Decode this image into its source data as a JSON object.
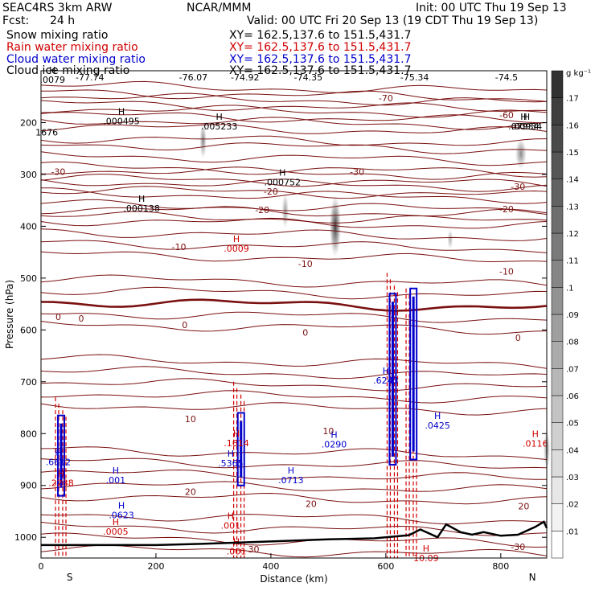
{
  "header": {
    "model": "SEAC4RS  3km ARW",
    "org": "NCAR/MMM",
    "init": "Init: 00 UTC Thu 19 Sep 13",
    "fcst_label": "Fcst:",
    "fcst_value": "24 h",
    "valid": "Valid: 00 UTC Fri 20 Sep 13 (19 CDT Thu 19 Sep 13)",
    "fields": [
      {
        "label": "Snow mixing ratio",
        "xy": "XY= 162.5,137.6 to 151.5,431.7",
        "color": "#000000"
      },
      {
        "label": "Rain water mixing ratio",
        "xy": "XY= 162.5,137.6 to 151.5,431.7",
        "color": "#d00000"
      },
      {
        "label": "Cloud water mixing ratio",
        "xy": "XY= 162.5,137.6 to 151.5,431.7",
        "color": "#0000cc"
      },
      {
        "label": "Cloud ice mixing ratio",
        "xy": "XY= 162.5,137.6 to 151.5,431.7",
        "color": "#000000"
      }
    ]
  },
  "chart_data": {
    "type": "heatmap",
    "title": "",
    "xlabel": "Distance (km)",
    "ylabel": "Pressure (hPa)",
    "xlim": [
      0,
      880
    ],
    "ylim": [
      1040,
      100
    ],
    "x_ticks": [
      0,
      200,
      400,
      600,
      800
    ],
    "y_ticks": [
      200,
      300,
      400,
      500,
      600,
      700,
      800,
      900,
      1000
    ],
    "x_end_labels": {
      "left": "S",
      "right": "N"
    },
    "colorbar": {
      "unit": "g kg⁻¹",
      "levels": [
        ".01",
        ".02",
        ".03",
        ".04",
        ".05",
        ".06",
        ".07",
        ".08",
        ".09",
        ".1",
        ".11",
        ".12",
        ".13",
        ".14",
        ".15",
        ".16",
        ".17"
      ]
    },
    "temperature_contours": [
      {
        "label": "-70",
        "p": 150
      },
      {
        "label": "-60",
        "p": 185
      },
      {
        "label": "-30",
        "p": 285
      },
      {
        "label": "-20",
        "p": 335
      },
      {
        "label": "-10",
        "p": 410
      },
      {
        "label": "0",
        "p": 545
      },
      {
        "label": "10",
        "p": 700
      },
      {
        "label": "20",
        "p": 875
      },
      {
        "label": "30",
        "p": 1000
      }
    ],
    "contour_labels": [
      {
        "text": "-30",
        "x": 30,
        "p": 295
      },
      {
        "text": "-20",
        "x": 385,
        "p": 368
      },
      {
        "text": "-30",
        "x": 550,
        "p": 295
      },
      {
        "text": "-20",
        "x": 400,
        "p": 333
      },
      {
        "text": "-20",
        "x": 810,
        "p": 367
      },
      {
        "text": "-30",
        "x": 830,
        "p": 323
      },
      {
        "text": "-10",
        "x": 240,
        "p": 440
      },
      {
        "text": "-10",
        "x": 460,
        "p": 472
      },
      {
        "text": "-10",
        "x": 810,
        "p": 487
      },
      {
        "text": "-60",
        "x": 810,
        "p": 185
      },
      {
        "text": "-70",
        "x": 600,
        "p": 153
      },
      {
        "text": "0",
        "x": 30,
        "p": 575
      },
      {
        "text": "0",
        "x": 70,
        "p": 578
      },
      {
        "text": "0",
        "x": 250,
        "p": 590
      },
      {
        "text": "0",
        "x": 460,
        "p": 605
      },
      {
        "text": "0",
        "x": 830,
        "p": 615
      },
      {
        "text": "10",
        "x": 260,
        "p": 772
      },
      {
        "text": "10",
        "x": 500,
        "p": 795
      },
      {
        "text": "20",
        "x": 260,
        "p": 912
      },
      {
        "text": "20",
        "x": 470,
        "p": 935
      },
      {
        "text": "20",
        "x": 840,
        "p": 940
      },
      {
        "text": "30",
        "x": 370,
        "p": 1023
      },
      {
        "text": "-30",
        "x": 830,
        "p": 1018
      }
    ],
    "top_temperature_labels": [
      {
        "text": "-77.74",
        "x": 85
      },
      {
        "text": "-76.07",
        "x": 265
      },
      {
        "text": "-74.92",
        "x": 355
      },
      {
        "text": "-74.35",
        "x": 465
      },
      {
        "text": "-75.34",
        "x": 650
      },
      {
        "text": "-74.5",
        "x": 810
      }
    ],
    "maxima": [
      {
        "text": ".0079",
        "x": 20,
        "p": 120,
        "color": "black"
      },
      {
        "text": ".000495",
        "x": 140,
        "p": 200,
        "color": "black"
      },
      {
        "text": ".005233",
        "x": 310,
        "p": 210,
        "color": "black"
      },
      {
        "text": ".07934",
        "x": 840,
        "p": 210,
        "color": "black"
      },
      {
        "text": ".000752",
        "x": 420,
        "p": 318,
        "color": "black"
      },
      {
        "text": ".000138",
        "x": 175,
        "p": 368,
        "color": "black"
      },
      {
        "text": ".0009",
        "x": 340,
        "p": 446,
        "color": "red"
      },
      {
        "text": ".00934",
        "x": 845,
        "p": 210,
        "color": "black"
      },
      {
        "text": ".6612",
        "x": 30,
        "p": 858,
        "color": "blue"
      },
      {
        "text": ".2238",
        "x": 35,
        "p": 898,
        "color": "red"
      },
      {
        "text": ".001",
        "x": 130,
        "p": 893,
        "color": "blue"
      },
      {
        "text": ".0623",
        "x": 140,
        "p": 960,
        "color": "blue"
      },
      {
        "text": ".0005",
        "x": 130,
        "p": 992,
        "color": "red"
      },
      {
        "text": ".5365",
        "x": 330,
        "p": 860,
        "color": "blue"
      },
      {
        "text": ".0713",
        "x": 435,
        "p": 893,
        "color": "blue"
      },
      {
        "text": ".0290",
        "x": 510,
        "p": 824,
        "color": "blue"
      },
      {
        "text": ".6243",
        "x": 600,
        "p": 700,
        "color": "blue"
      },
      {
        "text": ".0425",
        "x": 690,
        "p": 787,
        "color": "blue"
      },
      {
        "text": ".001",
        "x": 330,
        "p": 980,
        "color": "red"
      },
      {
        "text": ".001",
        "x": 340,
        "p": 1030,
        "color": "red"
      },
      {
        "text": "10.09",
        "x": 670,
        "p": 1043,
        "color": "red"
      },
      {
        "text": ".1614",
        "x": 340,
        "p": 821,
        "color": "red"
      },
      {
        "text": ".0116",
        "x": 860,
        "p": 822,
        "color": "red"
      }
    ],
    "side_label": {
      "text": "1676",
      "x": 10,
      "p": 225
    },
    "snow_cores": [
      {
        "x": 512,
        "p": 400,
        "rx": 10,
        "rp": 60,
        "v": 0.15
      },
      {
        "x": 282,
        "p": 235,
        "rx": 6,
        "rp": 35,
        "v": 0.07
      },
      {
        "x": 425,
        "p": 370,
        "rx": 6,
        "rp": 35,
        "v": 0.04
      },
      {
        "x": 835,
        "p": 260,
        "rx": 10,
        "rp": 30,
        "v": 0.06
      },
      {
        "x": 712,
        "p": 425,
        "rx": 5,
        "rp": 20,
        "v": 0.02
      },
      {
        "x": 880,
        "p": 830,
        "rx": 6,
        "rp": 40,
        "v": 0.05
      }
    ],
    "rain_columns": [
      {
        "x": 35,
        "p_top": 730,
        "p_bottom": 1040
      },
      {
        "x": 345,
        "p_top": 700,
        "p_bottom": 1040
      },
      {
        "x": 612,
        "p_top": 490,
        "p_bottom": 1040
      },
      {
        "x": 645,
        "p_top": 520,
        "p_bottom": 1040
      }
    ],
    "cloud_columns": [
      {
        "x": 35,
        "p_top": 765,
        "p_bottom": 920
      },
      {
        "x": 348,
        "p_top": 760,
        "p_bottom": 900
      },
      {
        "x": 612,
        "p_top": 530,
        "p_bottom": 860
      },
      {
        "x": 648,
        "p_top": 520,
        "p_bottom": 850
      }
    ],
    "terrain": [
      [
        0,
        1015
      ],
      [
        200,
        1015
      ],
      [
        300,
        1012
      ],
      [
        400,
        1008
      ],
      [
        500,
        1004
      ],
      [
        580,
        1002
      ],
      [
        640,
        996
      ],
      [
        660,
        985
      ],
      [
        690,
        1000
      ],
      [
        705,
        975
      ],
      [
        730,
        990
      ],
      [
        750,
        995
      ],
      [
        770,
        990
      ],
      [
        800,
        997
      ],
      [
        830,
        995
      ],
      [
        860,
        980
      ],
      [
        875,
        970
      ],
      [
        880,
        982
      ]
    ]
  }
}
